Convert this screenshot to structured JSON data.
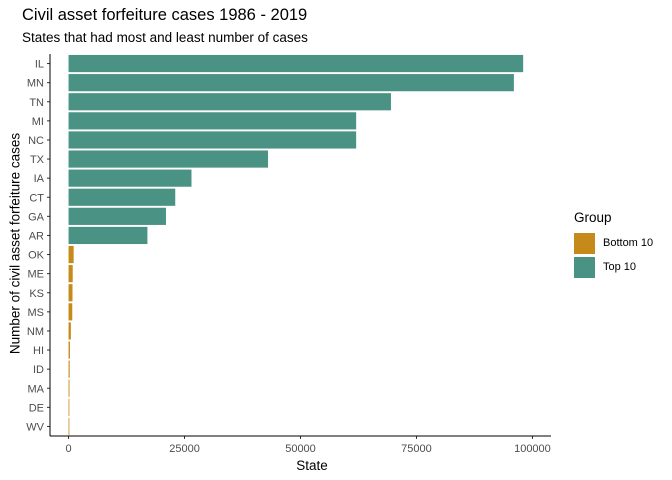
{
  "chart_data": {
    "type": "bar",
    "orientation": "horizontal",
    "title": "Civil asset forfeiture cases 1986 - 2019",
    "subtitle": "States that had most and least number of cases",
    "xlabel": "State",
    "ylabel": "Number of civil asset forfeiture cases",
    "xlim": [
      -4000,
      104000
    ],
    "xticks": [
      0,
      25000,
      50000,
      75000,
      100000
    ],
    "xtick_labels": [
      "0",
      "25000",
      "50000",
      "75000",
      "100000"
    ],
    "grid": false,
    "legend_position": "right",
    "legend_title": "Group",
    "legend": [
      {
        "name": "Bottom 10",
        "color": "#C68A1A"
      },
      {
        "name": "Top 10",
        "color": "#4A9384"
      }
    ],
    "categories": [
      "IL",
      "MN",
      "TN",
      "MI",
      "NC",
      "TX",
      "IA",
      "CT",
      "GA",
      "AR",
      "OK",
      "ME",
      "KS",
      "MS",
      "NM",
      "HI",
      "ID",
      "MA",
      "DE",
      "WV"
    ],
    "values": [
      98000,
      96000,
      69500,
      62000,
      62000,
      43000,
      26500,
      23000,
      21000,
      17000,
      1100,
      900,
      850,
      800,
      500,
      300,
      250,
      200,
      150,
      100
    ],
    "groups": [
      "Top 10",
      "Top 10",
      "Top 10",
      "Top 10",
      "Top 10",
      "Top 10",
      "Top 10",
      "Top 10",
      "Top 10",
      "Top 10",
      "Bottom 10",
      "Bottom 10",
      "Bottom 10",
      "Bottom 10",
      "Bottom 10",
      "Bottom 10",
      "Bottom 10",
      "Bottom 10",
      "Bottom 10",
      "Bottom 10"
    ]
  }
}
